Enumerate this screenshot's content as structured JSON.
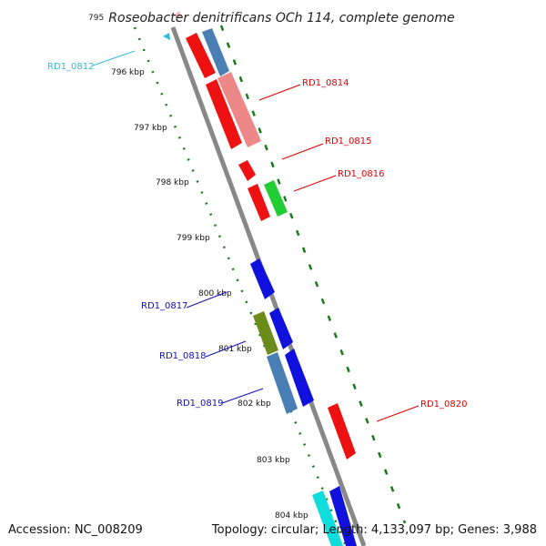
{
  "header": {
    "position_prefix": "795",
    "title": "Roseobacter denitrificans OCh 114, complete genome"
  },
  "footer": {
    "accession": "Accession: NC_008209",
    "summary": "Topology: circular; Length: 4,133,097 bp; Genes: 3,988"
  },
  "ticks": [
    "796 kbp",
    "797 kbp",
    "798 kbp",
    "799 kbp",
    "800 kbp",
    "801 kbp",
    "802 kbp",
    "803 kbp",
    "804 kbp"
  ],
  "genes": [
    {
      "id": "RD1_0812",
      "color": "#33bbdd",
      "strand": "reverse"
    },
    {
      "id": "RD1_0814",
      "color": "#dd0000",
      "strand": "forward"
    },
    {
      "id": "RD1_0815",
      "color": "#dd0000",
      "strand": "forward"
    },
    {
      "id": "RD1_0816",
      "color": "#dd0000",
      "strand": "forward"
    },
    {
      "id": "RD1_0817",
      "color": "#1010bb",
      "strand": "reverse"
    },
    {
      "id": "RD1_0818",
      "color": "#1010bb",
      "strand": "reverse"
    },
    {
      "id": "RD1_0819",
      "color": "#1010bb",
      "strand": "reverse"
    },
    {
      "id": "RD1_0820",
      "color": "#dd0000",
      "strand": "forward"
    }
  ],
  "colors": {
    "backbone": "#888888",
    "gc_dots": "#1a7a1a",
    "forward_cds": "#ee1111",
    "reverse_cds": "#1111dd",
    "rrna_pink": "#ee8888",
    "steel_blue": "#4a7fb5",
    "green_cds": "#22cc33",
    "olive_cds": "#6b8c1a",
    "cyan_cds": "#11dddd"
  }
}
